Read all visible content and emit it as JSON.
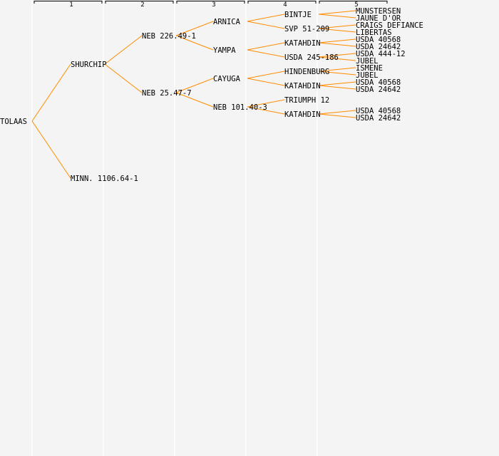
{
  "generations": [
    "1",
    "2",
    "3",
    "4",
    "5"
  ],
  "colors": {
    "line": "#ff8c00",
    "background": "#f4f4f4",
    "divider": "#ffffff"
  },
  "tree": {
    "name": "TOLAAS",
    "children": [
      {
        "name": "SHURCHIP",
        "children": [
          {
            "name": "NEB 226.49-1",
            "children": [
              {
                "name": "ARNICA",
                "children": [
                  {
                    "name": "BINTJE",
                    "children": [
                      {
                        "name": "MUNSTERSEN"
                      },
                      {
                        "name": "JAUNE D'OR"
                      }
                    ]
                  },
                  {
                    "name": "SVP 51-209",
                    "children": [
                      {
                        "name": "CRAIGS DEFIANCE"
                      },
                      {
                        "name": "LIBERTAS"
                      }
                    ]
                  }
                ]
              },
              {
                "name": "YAMPA",
                "children": [
                  {
                    "name": "KATAHDIN",
                    "children": [
                      {
                        "name": "USDA 40568"
                      },
                      {
                        "name": "USDA 24642"
                      }
                    ]
                  },
                  {
                    "name": "USDA 245-186",
                    "children": [
                      {
                        "name": "USDA 444-12"
                      },
                      {
                        "name": "JUBEL"
                      }
                    ]
                  }
                ]
              }
            ]
          },
          {
            "name": "NEB 25.47-7",
            "children": [
              {
                "name": "CAYUGA",
                "children": [
                  {
                    "name": "HINDENBURG",
                    "children": [
                      {
                        "name": "ISMENE"
                      },
                      {
                        "name": "JUBEL"
                      }
                    ]
                  },
                  {
                    "name": "KATAHDIN",
                    "children": [
                      {
                        "name": "USDA 40568"
                      },
                      {
                        "name": "USDA 24642"
                      }
                    ]
                  }
                ]
              },
              {
                "name": "NEB 101.40-3",
                "children": [
                  {
                    "name": "TRIUMPH 12"
                  },
                  {
                    "name": "KATAHDIN",
                    "children": [
                      {
                        "name": "USDA 40568"
                      },
                      {
                        "name": "USDA 24642"
                      }
                    ]
                  }
                ]
              }
            ]
          }
        ]
      },
      {
        "name": "MINN. 1106.64-1"
      }
    ]
  }
}
